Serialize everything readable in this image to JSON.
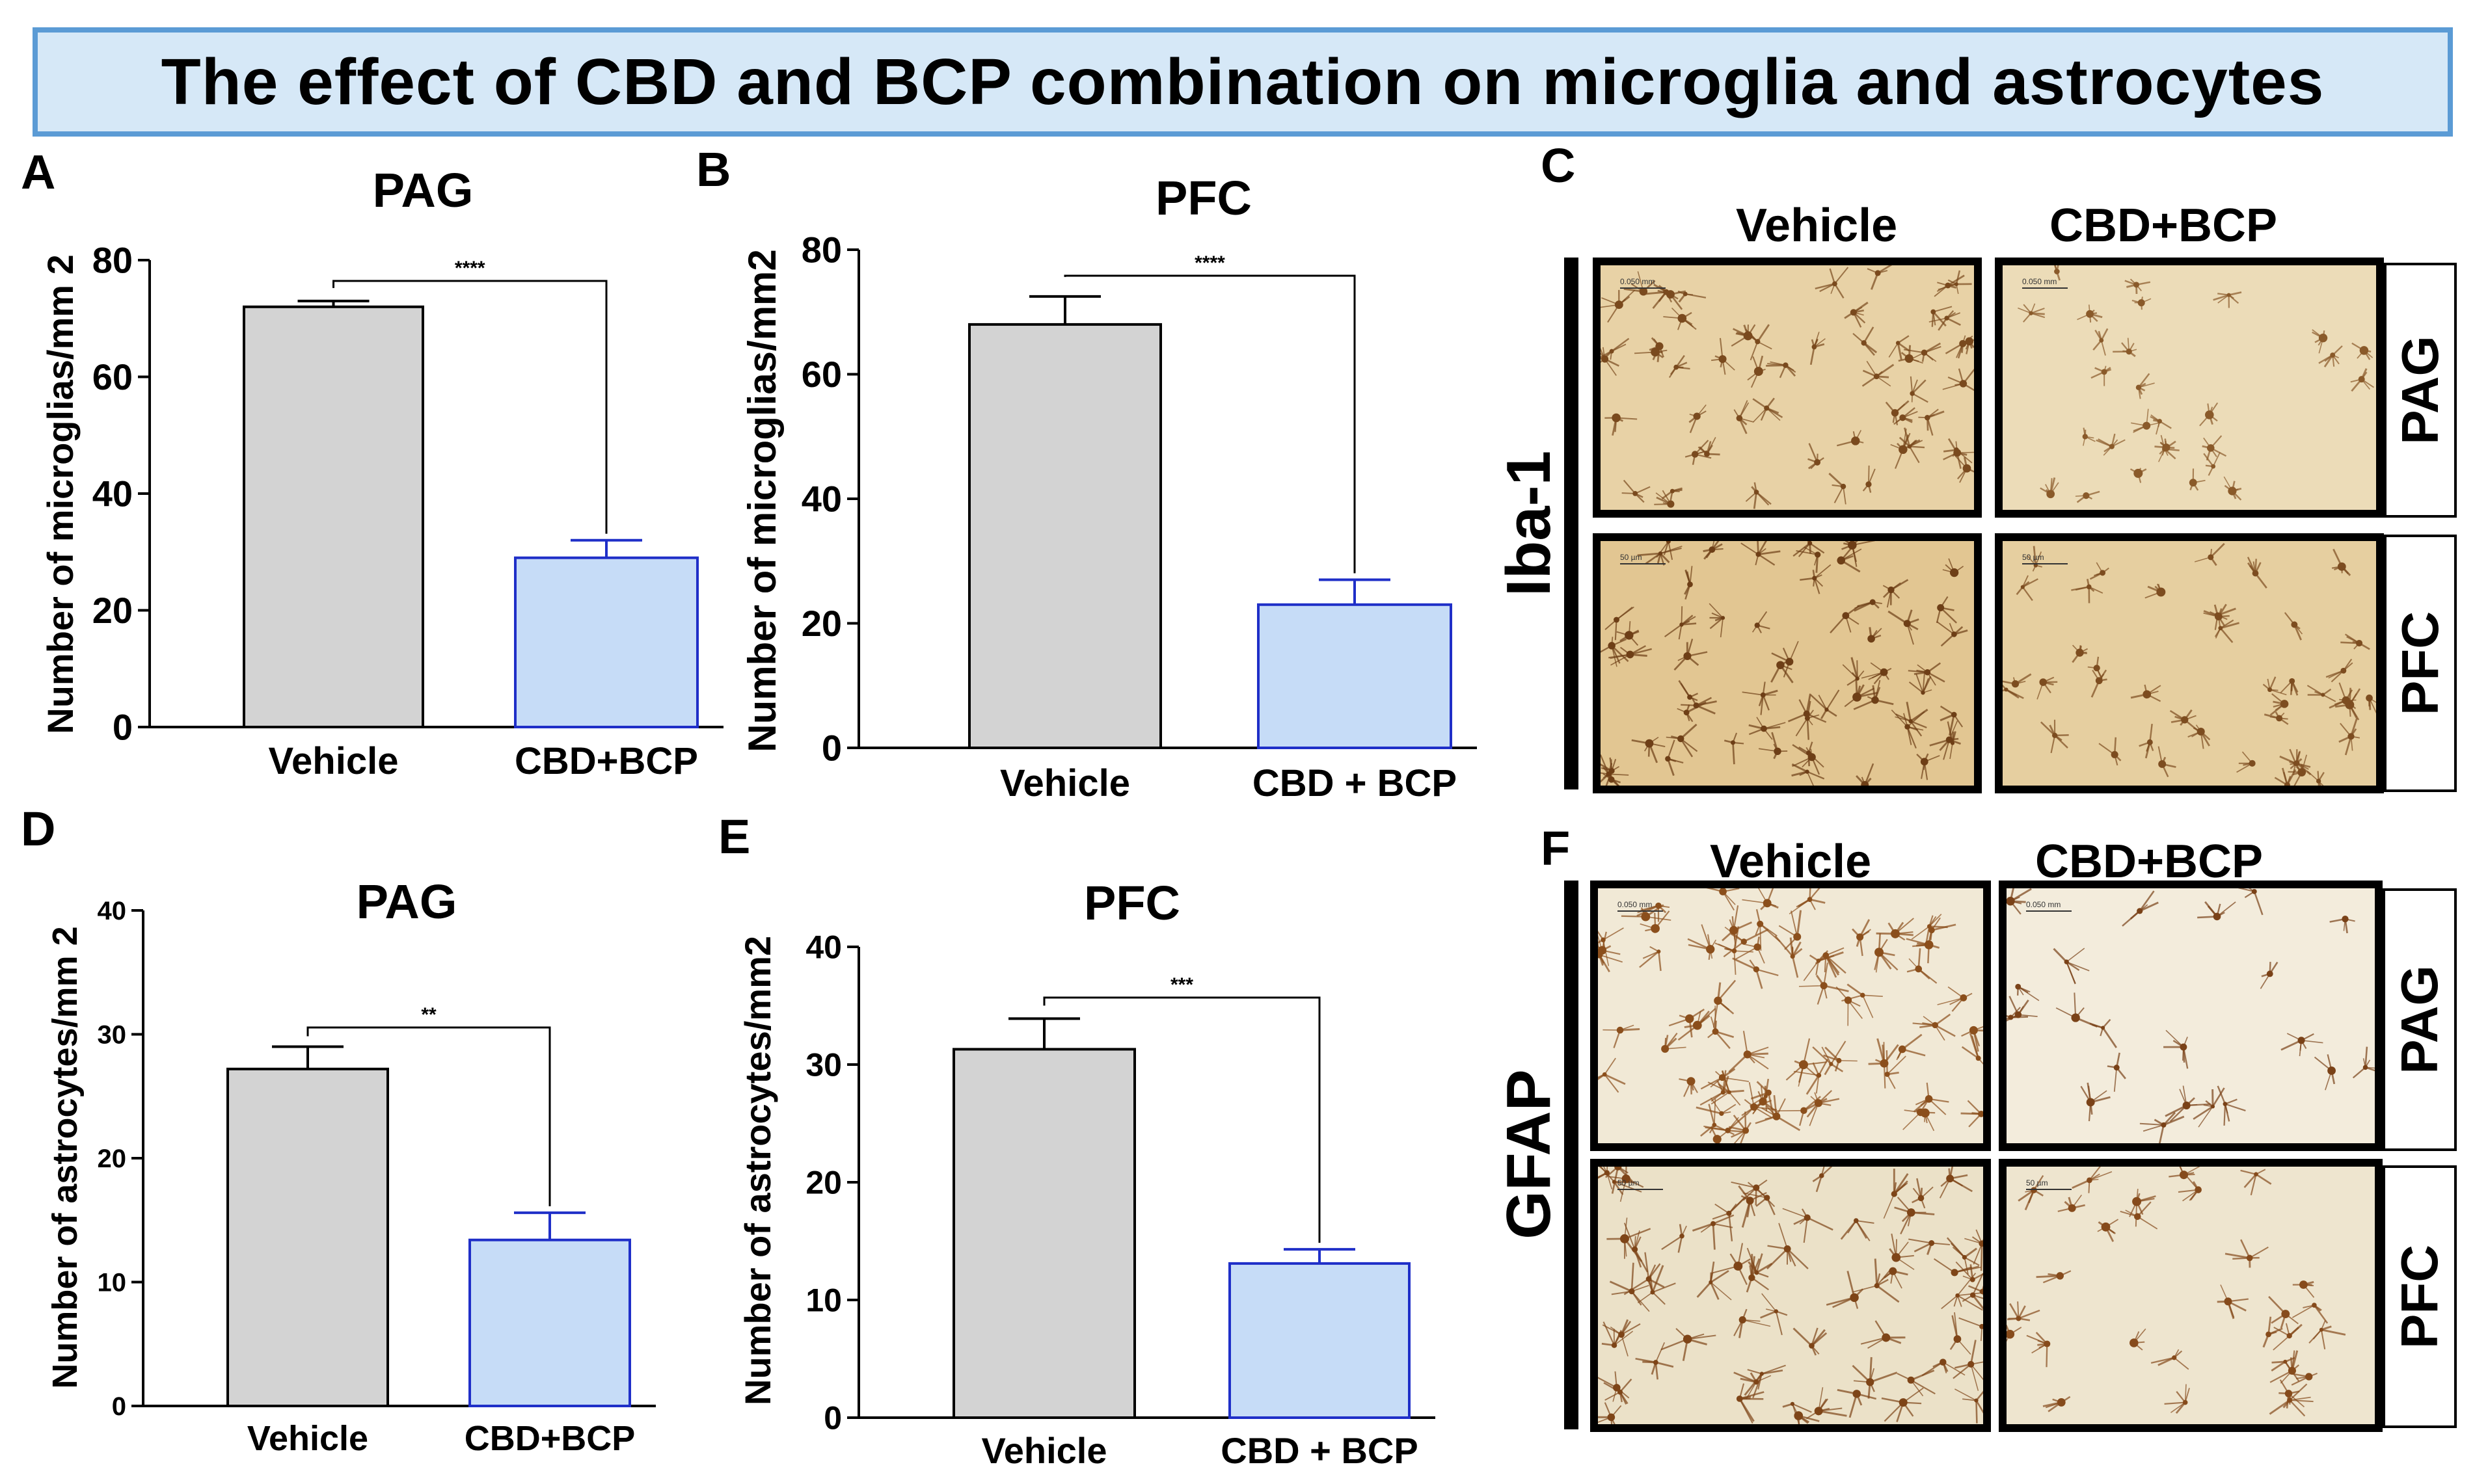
{
  "title": "The effect of CBD and BCP combination on microglia and astrocytes",
  "colors": {
    "vehicle_fill": "#d3d3d3",
    "vehicle_stroke": "#000000",
    "treat_fill": "#c6dcf7",
    "treat_stroke": "#1f2fc8",
    "title_bg": "#d6e8f7",
    "title_border": "#5b9bd5"
  },
  "chart_data": [
    {
      "panel": "A",
      "type": "bar",
      "title": "PAG",
      "ylabel": "Number of microglias/mm 2",
      "ylim": [
        0,
        80
      ],
      "yticks": [
        "0",
        "20",
        "40",
        "60",
        "80"
      ],
      "categories": [
        "Vehicle",
        "CBD+BCP"
      ],
      "values": [
        72,
        29
      ],
      "errors": [
        1,
        3
      ],
      "significance": "****"
    },
    {
      "panel": "B",
      "type": "bar",
      "title": "PFC",
      "ylabel": "Number of microglias/mm2",
      "ylim": [
        0,
        80
      ],
      "yticks": [
        "0",
        "20",
        "40",
        "60",
        "80"
      ],
      "categories": [
        "Vehicle",
        "CBD + BCP"
      ],
      "values": [
        68,
        23
      ],
      "errors": [
        4.5,
        4
      ],
      "significance": "****"
    },
    {
      "panel": "D",
      "type": "bar",
      "title": "PAG",
      "ylabel": "Number of astrocytes/mm 2",
      "ylim": [
        0,
        40
      ],
      "yticks": [
        "0",
        "10",
        "20",
        "30",
        "40"
      ],
      "categories": [
        "Vehicle",
        "CBD+BCP"
      ],
      "values": [
        27.2,
        13.4
      ],
      "errors": [
        1.8,
        2.2
      ],
      "significance": "**"
    },
    {
      "panel": "E",
      "type": "bar",
      "title": "PFC",
      "ylabel": "Number of astrocytes/mm2",
      "ylim": [
        0,
        40
      ],
      "yticks": [
        "0",
        "10",
        "20",
        "30",
        "40"
      ],
      "categories": [
        "Vehicle",
        "CBD + BCP"
      ],
      "values": [
        31.3,
        13.1
      ],
      "errors": [
        2.6,
        1.2
      ],
      "significance": "***"
    }
  ],
  "image_panels": [
    {
      "panel": "C",
      "stain": "Iba-1",
      "columns": [
        "Vehicle",
        "CBD+BCP"
      ],
      "rows": [
        "PAG",
        "PFC"
      ],
      "scale_labels": [
        "0.050 mm",
        "0.050 mm",
        "50 µm",
        "50 µm"
      ]
    },
    {
      "panel": "F",
      "stain": "GFAP",
      "columns": [
        "Vehicle",
        "CBD+BCP"
      ],
      "rows": [
        "PAG",
        "PFC"
      ],
      "scale_labels": [
        "0.050 mm",
        "0.050 mm",
        "50 µm",
        "50 µm"
      ]
    }
  ]
}
